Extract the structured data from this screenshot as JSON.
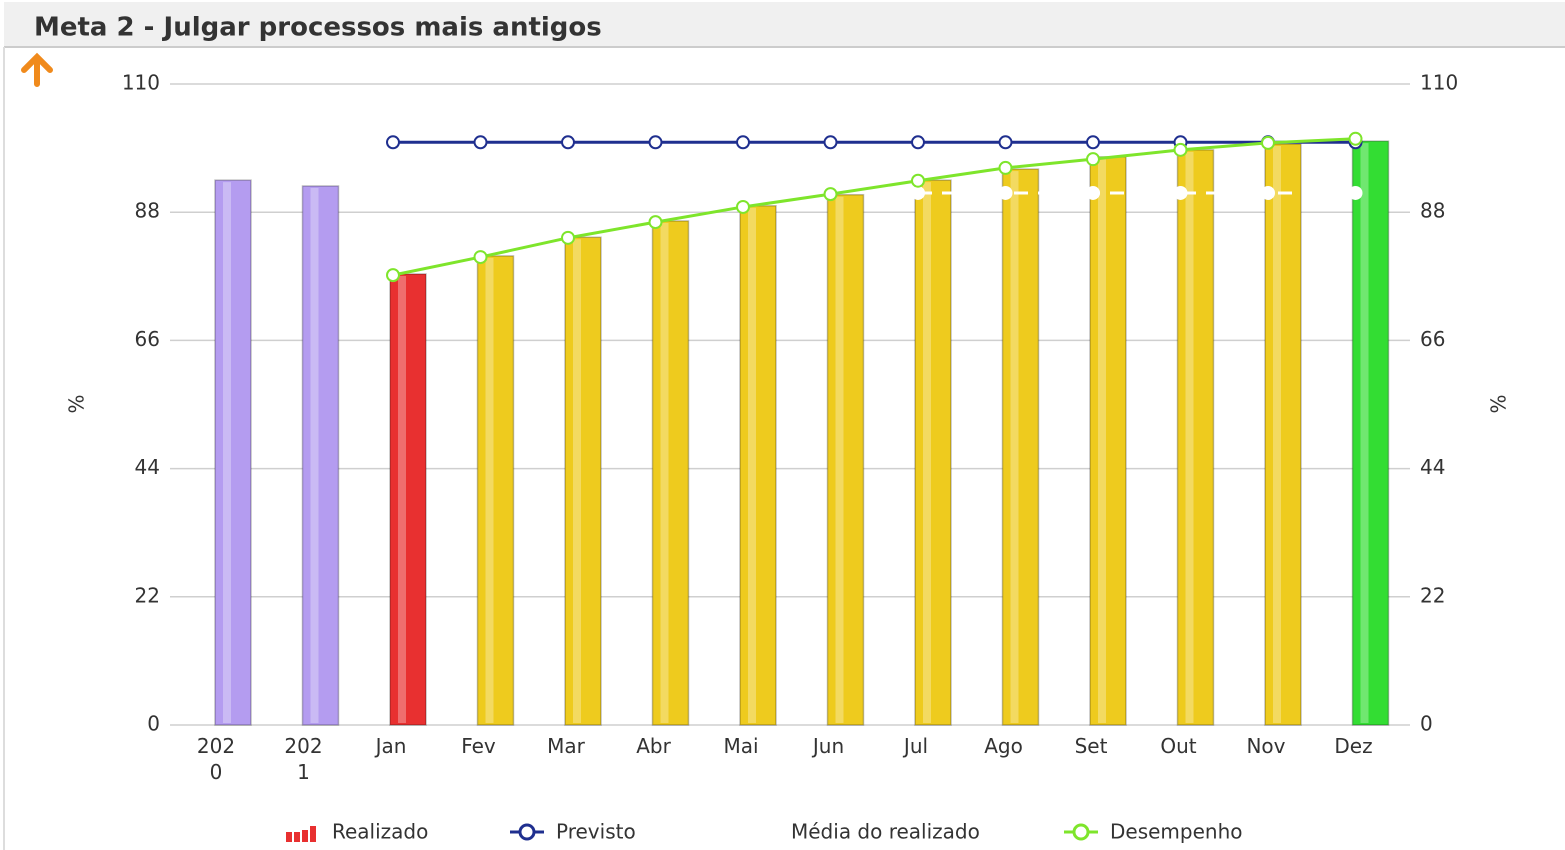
{
  "chart_data": {
    "type": "bar",
    "title": "Meta 2 - Julgar processos mais antigos",
    "ylabel": "%",
    "y2label": "%",
    "categories": [
      "2020",
      "2021",
      "Jan",
      "Fev",
      "Mar",
      "Abr",
      "Mai",
      "Jun",
      "Jul",
      "Ago",
      "Set",
      "Out",
      "Nov",
      "Dez"
    ],
    "series": [
      {
        "name": "Realizado",
        "type": "bar",
        "color": "#e83030",
        "colors": [
          "#b49cf0",
          "#b49cf0",
          "#e83030",
          "#eecb1e",
          "#eecb1e",
          "#eecb1e",
          "#eecb1e",
          "#eecb1e",
          "#eecb1e",
          "#eecb1e",
          "#eecb1e",
          "#eecb1e",
          "#eecb1e",
          "#33dd33"
        ],
        "values": [
          93.5,
          92.5,
          77.4,
          80.5,
          83.7,
          86.5,
          89.1,
          91.0,
          93.5,
          95.4,
          97.5,
          98.7,
          99.7,
          100.2
        ]
      },
      {
        "name": "Previsto",
        "type": "line",
        "color": "#1f2f8f",
        "values": [
          null,
          null,
          100,
          100,
          100,
          100,
          100,
          100,
          100,
          100,
          100,
          100,
          100,
          100
        ]
      },
      {
        "name": "Média do realizado",
        "type": "line",
        "color": "#ffffff",
        "dashed": true,
        "values": [
          null,
          null,
          null,
          null,
          null,
          null,
          null,
          null,
          91.3,
          91.3,
          91.3,
          91.3,
          91.3,
          91.3
        ]
      },
      {
        "name": "Desempenho",
        "type": "line",
        "color": "#7ee52b",
        "values": [
          null,
          null,
          77.2,
          80.3,
          83.6,
          86.3,
          88.9,
          91.1,
          93.4,
          95.6,
          97.1,
          98.7,
          99.9,
          100.6
        ]
      }
    ],
    "ylim": [
      0,
      110
    ],
    "yticks": [
      0,
      22,
      44,
      66,
      88,
      110
    ],
    "y2lim": [
      0,
      110
    ],
    "y2ticks": [
      0,
      22,
      44,
      66,
      88,
      110
    ],
    "grid": true
  }
}
